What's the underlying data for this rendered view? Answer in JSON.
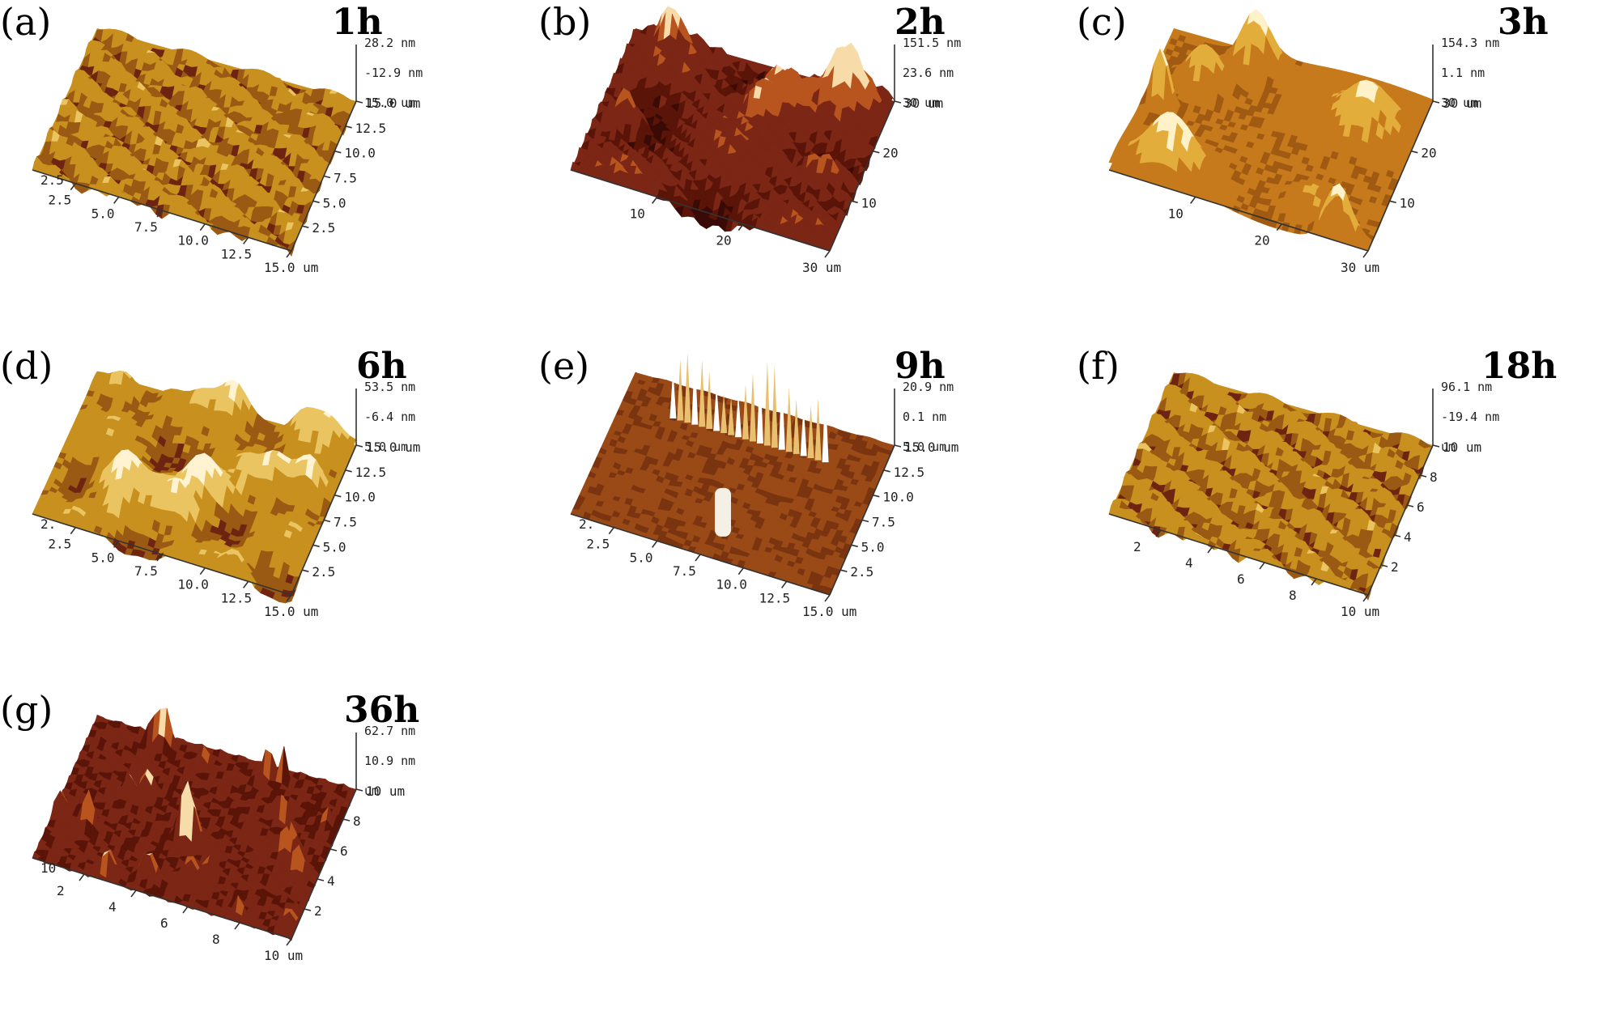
{
  "panels": [
    {
      "label": "(a)",
      "time": "1h",
      "style": "grain",
      "palette": "gold",
      "z": [
        "28.2 nm",
        "-12.9 nm",
        "15.0 um"
      ],
      "x_ticks": [
        "2.5",
        "5.0",
        "7.5",
        "10.0",
        "12.5",
        "15.0 um"
      ],
      "y_ticks": [
        "15.0 um",
        "12.5",
        "10.0",
        "7.5",
        "5.0",
        "2.5"
      ],
      "corner": "2.5"
    },
    {
      "label": "(b)",
      "time": "2h",
      "style": "hills",
      "palette": "maroon",
      "z": [
        "151.5 nm",
        "23.6 nm",
        "30 um"
      ],
      "x_ticks": [
        "10",
        "20",
        "30 um"
      ],
      "y_ticks": [
        "30 um",
        "20",
        "10"
      ],
      "corner": ""
    },
    {
      "label": "(c)",
      "time": "3h",
      "style": "smooth",
      "palette": "amber",
      "z": [
        "154.3 nm",
        "1.1 nm",
        "30 um"
      ],
      "x_ticks": [
        "10",
        "20",
        "30 um"
      ],
      "y_ticks": [
        "30 um",
        "20",
        "10"
      ],
      "corner": ""
    },
    {
      "label": "(d)",
      "time": "6h",
      "style": "wavy",
      "palette": "gold",
      "z": [
        "53.5 nm",
        "-6.4 nm",
        "5.0 um"
      ],
      "x_ticks": [
        "2.5",
        "5.0",
        "7.5",
        "10.0",
        "12.5",
        "15.0 um"
      ],
      "y_ticks": [
        "15.0 um",
        "12.5",
        "10.0",
        "7.5",
        "5.0",
        "2.5"
      ],
      "corner": "2."
    },
    {
      "label": "(e)",
      "time": "9h",
      "style": "spikes",
      "palette": "brown",
      "z": [
        "20.9 nm",
        "0.1 nm",
        "5.0 um"
      ],
      "x_ticks": [
        "2.5",
        "5.0",
        "7.5",
        "10.0",
        "12.5",
        "15.0 um"
      ],
      "y_ticks": [
        "15.0 um",
        "12.5",
        "10.0",
        "7.5",
        "5.0",
        "2.5"
      ],
      "corner": "2."
    },
    {
      "label": "(f)",
      "time": "18h",
      "style": "grain",
      "palette": "gold",
      "z": [
        "96.1 nm",
        "-19.4 nm",
        "um"
      ],
      "x_ticks": [
        "2",
        "4",
        "6",
        "8",
        "10 um"
      ],
      "y_ticks": [
        "10 um",
        "8",
        "6",
        "4",
        "2"
      ],
      "corner": ""
    },
    {
      "label": "(g)",
      "time": "36h",
      "style": "peaks",
      "palette": "maroon",
      "z": [
        "62.7 nm",
        "10.9 nm",
        "um"
      ],
      "x_ticks": [
        "2",
        "4",
        "6",
        "8",
        "10 um"
      ],
      "y_ticks": [
        "10 um",
        "8",
        "6",
        "4",
        "2"
      ],
      "corner": "10"
    }
  ],
  "palettes": {
    "gold": {
      "low": "#6e2410",
      "mid": "#c8901e",
      "high": "#e9c460",
      "top": "#fff3d2",
      "shade": "#9a5a14"
    },
    "maroon": {
      "low": "#3a0a06",
      "mid": "#7c2616",
      "high": "#b8551e",
      "top": "#f7dcaa",
      "shade": "#5a1408"
    },
    "amber": {
      "low": "#7a3210",
      "mid": "#c67a1c",
      "high": "#e3ad3c",
      "top": "#fff1c8",
      "shade": "#a05a12"
    },
    "brown": {
      "low": "#5a1a0a",
      "mid": "#9a4a16",
      "high": "#c8781e",
      "top": "#ffffff",
      "shade": "#7a3410"
    }
  }
}
